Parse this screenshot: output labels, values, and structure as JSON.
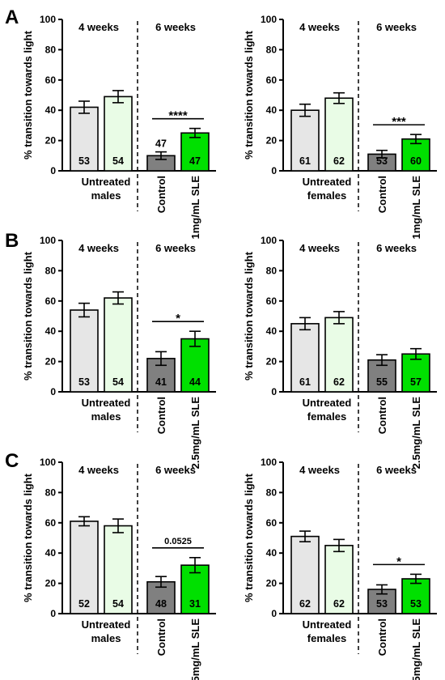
{
  "panel_letters": [
    "A",
    "B",
    "C"
  ],
  "chart_data": [
    {
      "type": "bar",
      "panel": "A",
      "ylabel": "% transition towards light",
      "ylim": [
        0,
        100
      ],
      "yticks": [
        0,
        20,
        40,
        60,
        80,
        100
      ],
      "group_labels": [
        "4 weeks",
        "6 weeks"
      ],
      "untreated_label": "Untreated males",
      "bars": [
        {
          "value": 42,
          "error": 4,
          "n": "53",
          "color": "#e6e6e6",
          "label": ""
        },
        {
          "value": 49,
          "error": 4,
          "n": "54",
          "color": "#e9fce6",
          "label": ""
        },
        {
          "value": 10,
          "error": 2.5,
          "n": "47",
          "n_above": true,
          "color": "#808080",
          "label": "Control"
        },
        {
          "value": 25,
          "error": 3,
          "n": "47",
          "color": "#00e000",
          "label": "1mg/mL SLE"
        }
      ],
      "significance": "****"
    },
    {
      "type": "bar",
      "panel": "A",
      "ylabel": "% transition towards light",
      "ylim": [
        0,
        100
      ],
      "yticks": [
        0,
        20,
        40,
        60,
        80,
        100
      ],
      "group_labels": [
        "4 weeks",
        "6 weeks"
      ],
      "untreated_label": "Untreated females",
      "bars": [
        {
          "value": 40,
          "error": 4,
          "n": "61",
          "color": "#e6e6e6",
          "label": ""
        },
        {
          "value": 48,
          "error": 3.5,
          "n": "62",
          "color": "#e9fce6",
          "label": ""
        },
        {
          "value": 11,
          "error": 2.5,
          "n": "53",
          "color": "#808080",
          "label": "Control"
        },
        {
          "value": 21,
          "error": 3,
          "n": "60",
          "color": "#00e000",
          "label": "1mg/mL SLE"
        }
      ],
      "significance": "***"
    },
    {
      "type": "bar",
      "panel": "B",
      "ylabel": "% transition towards light",
      "ylim": [
        0,
        100
      ],
      "yticks": [
        0,
        20,
        40,
        60,
        80,
        100
      ],
      "group_labels": [
        "4 weeks",
        "6 weeks"
      ],
      "untreated_label": "Untreated males",
      "bars": [
        {
          "value": 54,
          "error": 4.5,
          "n": "53",
          "color": "#e6e6e6",
          "label": ""
        },
        {
          "value": 62,
          "error": 4,
          "n": "54",
          "color": "#e9fce6",
          "label": ""
        },
        {
          "value": 22,
          "error": 4.5,
          "n": "41",
          "color": "#808080",
          "label": "Control"
        },
        {
          "value": 35,
          "error": 5,
          "n": "44",
          "color": "#00e000",
          "label": "2.5mg/mL SLE"
        }
      ],
      "significance": "*"
    },
    {
      "type": "bar",
      "panel": "B",
      "ylabel": "% transition towards light",
      "ylim": [
        0,
        100
      ],
      "yticks": [
        0,
        20,
        40,
        60,
        80,
        100
      ],
      "group_labels": [
        "4 weeks",
        "6 weeks"
      ],
      "untreated_label": "Untreated females",
      "bars": [
        {
          "value": 45,
          "error": 4,
          "n": "61",
          "color": "#e6e6e6",
          "label": ""
        },
        {
          "value": 49,
          "error": 4,
          "n": "62",
          "color": "#e9fce6",
          "label": ""
        },
        {
          "value": 21,
          "error": 3.5,
          "n": "55",
          "color": "#808080",
          "label": "Control"
        },
        {
          "value": 25,
          "error": 3.5,
          "n": "57",
          "color": "#00e000",
          "label": "2.5mg/mL SLE"
        }
      ],
      "significance": ""
    },
    {
      "type": "bar",
      "panel": "C",
      "ylabel": "% transition towards light",
      "ylim": [
        0,
        100
      ],
      "yticks": [
        0,
        20,
        40,
        60,
        80,
        100
      ],
      "group_labels": [
        "4 weeks",
        "6 weeks"
      ],
      "untreated_label": "Untreated males",
      "bars": [
        {
          "value": 61,
          "error": 3,
          "n": "52",
          "color": "#e6e6e6",
          "label": ""
        },
        {
          "value": 58,
          "error": 4.5,
          "n": "54",
          "color": "#e9fce6",
          "label": ""
        },
        {
          "value": 21,
          "error": 3.5,
          "n": "48",
          "color": "#808080",
          "label": "Control"
        },
        {
          "value": 32,
          "error": 5,
          "n": "31",
          "color": "#00e000",
          "label": "5mg/mL SLE"
        }
      ],
      "significance": "0.0525"
    },
    {
      "type": "bar",
      "panel": "C",
      "ylabel": "% transition towards light",
      "ylim": [
        0,
        100
      ],
      "yticks": [
        0,
        20,
        40,
        60,
        80,
        100
      ],
      "group_labels": [
        "4 weeks",
        "6 weeks"
      ],
      "untreated_label": "Untreated females",
      "bars": [
        {
          "value": 51,
          "error": 3.5,
          "n": "62",
          "color": "#e6e6e6",
          "label": ""
        },
        {
          "value": 45,
          "error": 4,
          "n": "62",
          "color": "#e9fce6",
          "label": ""
        },
        {
          "value": 16,
          "error": 3,
          "n": "53",
          "color": "#808080",
          "label": "Control"
        },
        {
          "value": 23,
          "error": 3,
          "n": "53",
          "color": "#00e000",
          "label": "5mg/mL SLE"
        }
      ],
      "significance": "*"
    }
  ]
}
